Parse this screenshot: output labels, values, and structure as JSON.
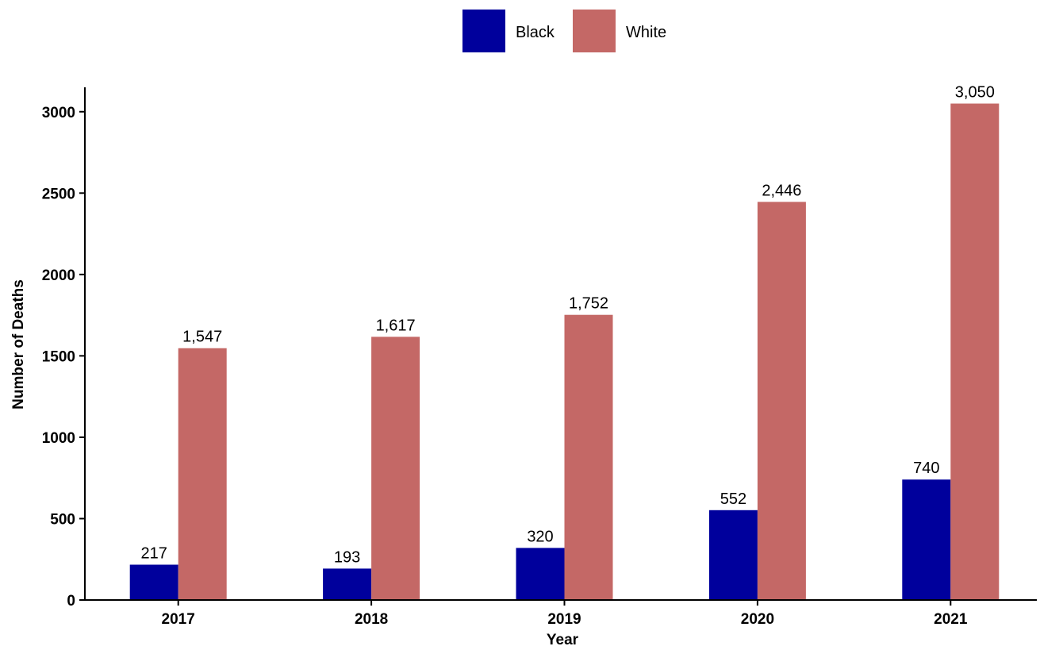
{
  "chart_data": {
    "type": "bar",
    "categories": [
      "2017",
      "2018",
      "2019",
      "2020",
      "2021"
    ],
    "series": [
      {
        "name": "Black",
        "values": [
          217,
          193,
          320,
          552,
          740
        ],
        "labels": [
          "217",
          "193",
          "320",
          "552",
          "740"
        ],
        "color": "#00009c"
      },
      {
        "name": "White",
        "values": [
          1547,
          1617,
          1752,
          2446,
          3050
        ],
        "labels": [
          "1,547",
          "1,617",
          "1,752",
          "2,446",
          "3,050"
        ],
        "color": "#c46866"
      }
    ],
    "title": "",
    "xlabel": "Year",
    "ylabel": "Number of Deaths",
    "ylim": [
      0,
      3150
    ],
    "yticks": [
      0,
      500,
      1000,
      1500,
      2000,
      2500,
      3000
    ],
    "ytick_labels": [
      "0",
      "500",
      "1000",
      "1500",
      "2000",
      "2500",
      "3000"
    ],
    "grid": false,
    "legend_position": "top-center"
  }
}
